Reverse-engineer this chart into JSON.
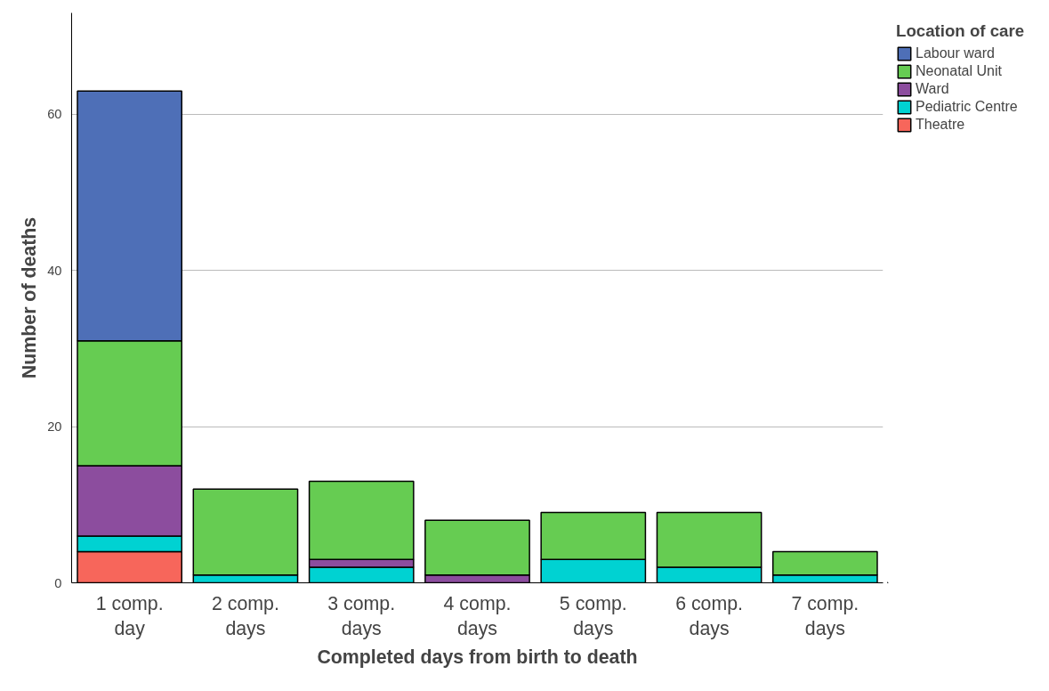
{
  "chart_data": {
    "type": "bar",
    "stacked": true,
    "xlabel": "Completed days from birth to death",
    "ylabel": "Number of deaths",
    "legend_title": "Location of care",
    "categories": [
      "1 comp.\nday",
      "2 comp.\ndays",
      "3 comp.\ndays",
      "4 comp.\ndays",
      "5 comp.\ndays",
      "6 comp.\ndays",
      "7 comp.\ndays"
    ],
    "series": [
      {
        "name": "Theatre",
        "color": "#f7665b",
        "values": [
          4,
          0,
          0,
          0,
          0,
          0,
          0
        ]
      },
      {
        "name": "Pediatric Centre",
        "color": "#00d2d2",
        "values": [
          2,
          1,
          2,
          0,
          3,
          2,
          1
        ]
      },
      {
        "name": "Ward",
        "color": "#8c4d9e",
        "values": [
          9,
          0,
          1,
          1,
          0,
          0,
          0
        ]
      },
      {
        "name": "Neonatal Unit",
        "color": "#66cc52",
        "values": [
          16,
          11,
          10,
          7,
          6,
          7,
          3
        ]
      },
      {
        "name": "Labour ward",
        "color": "#4e6fb7",
        "values": [
          32,
          0,
          0,
          0,
          0,
          0,
          0
        ]
      }
    ],
    "ylim": [
      0,
      73
    ],
    "yticks": [
      0,
      20,
      40,
      60
    ],
    "grid": "y",
    "legend": "top right"
  }
}
